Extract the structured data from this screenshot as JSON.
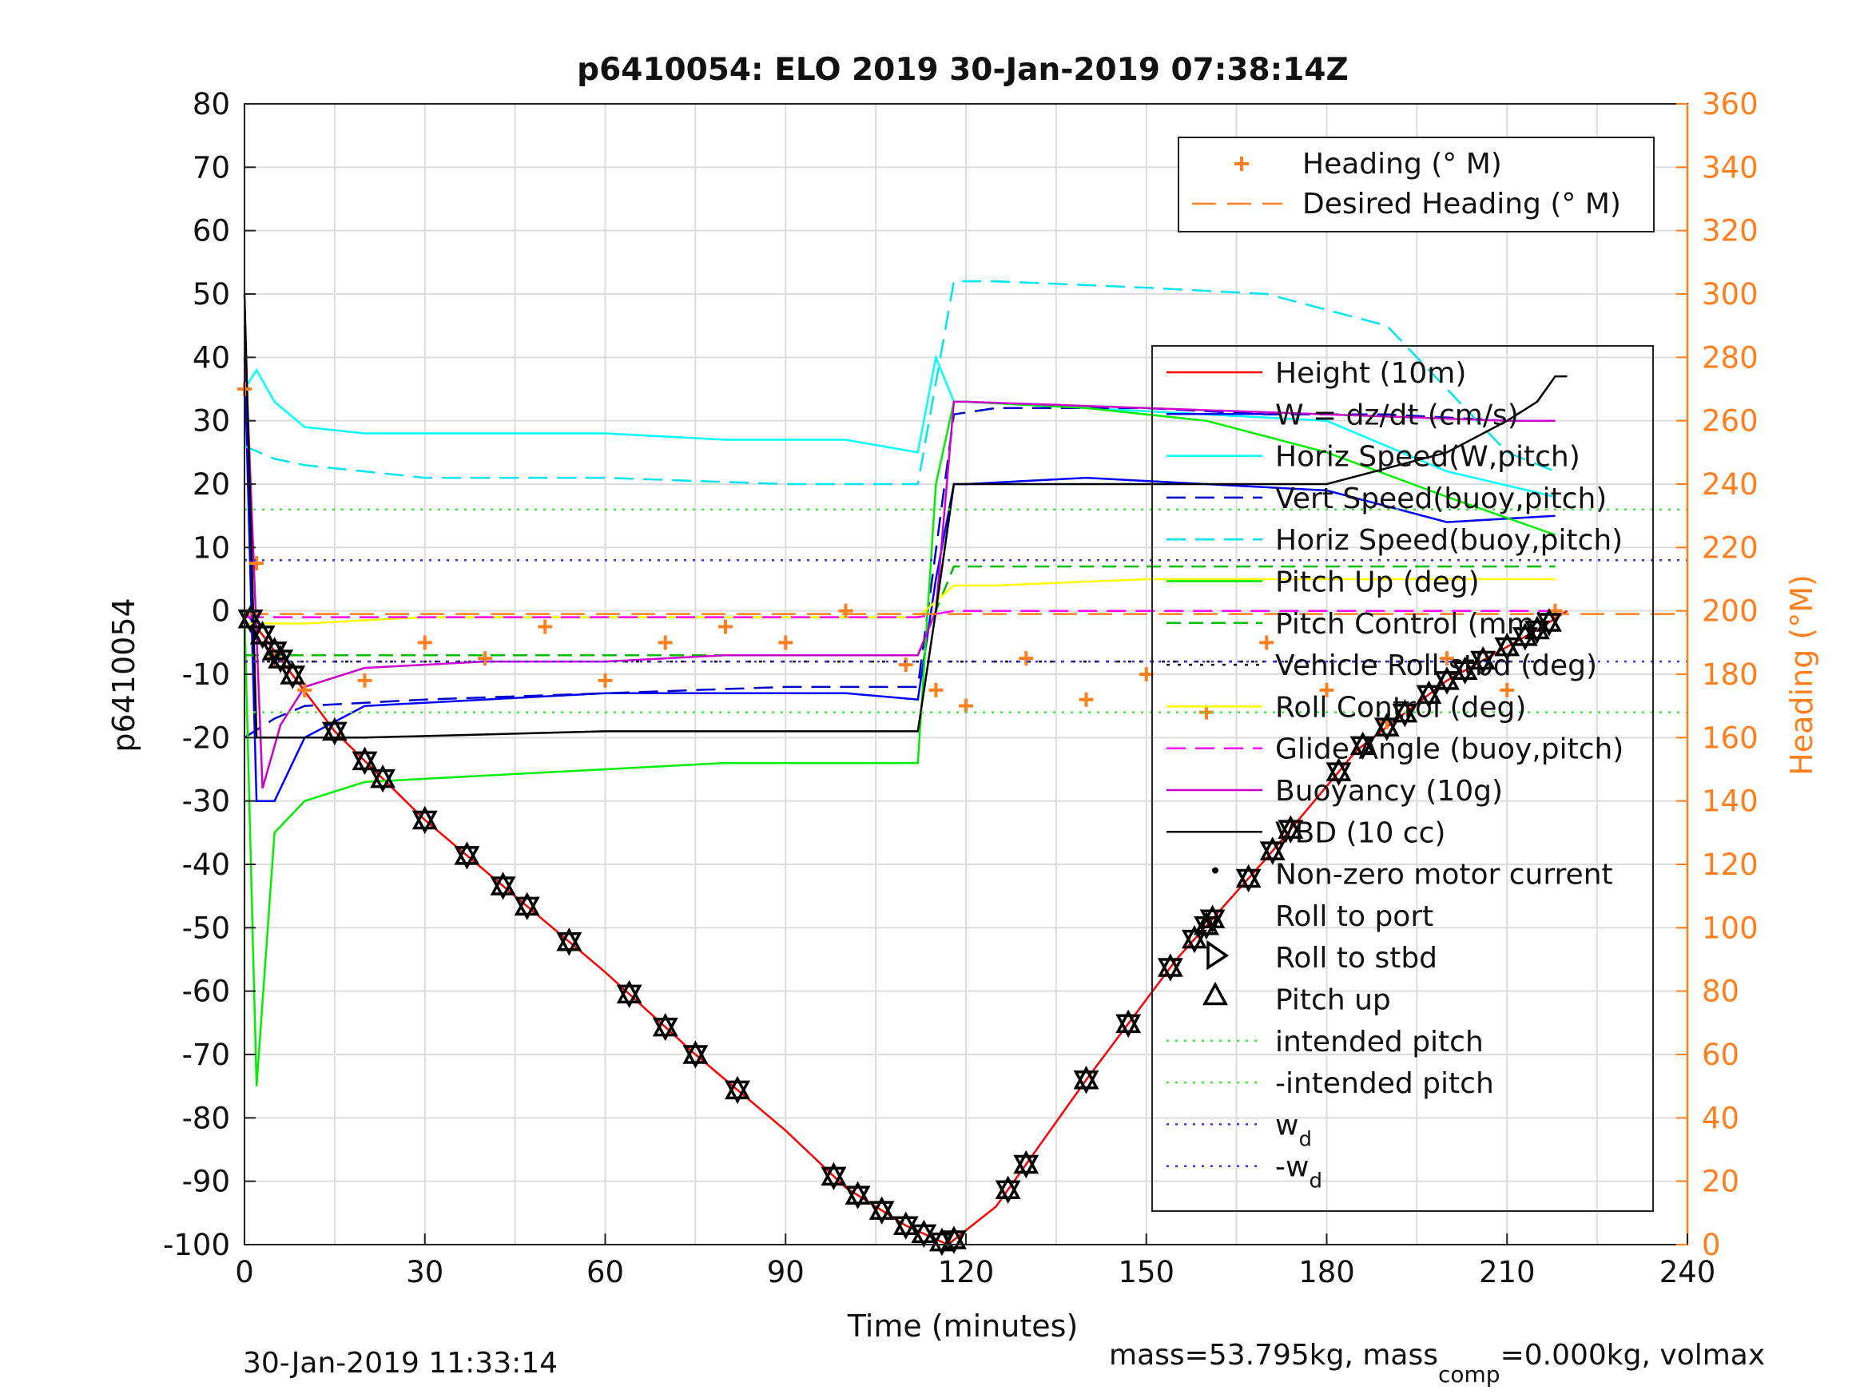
{
  "chart_data": {
    "type": "line",
    "title": "p6410054: ELO 2019 30-Jan-2019 07:38:14Z",
    "xlabel": "Time (minutes)",
    "ylabel": "p6410054",
    "y2label": "Heading (°M)",
    "xlim": [
      0,
      240
    ],
    "ylim": [
      -100,
      80
    ],
    "y2lim": [
      0,
      360
    ],
    "xticks": [
      "0",
      "30",
      "60",
      "90",
      "120",
      "150",
      "180",
      "210",
      "240"
    ],
    "yticks": [
      "80",
      "70",
      "60",
      "50",
      "40",
      "30",
      "20",
      "10",
      "0",
      "-10",
      "-20",
      "-30",
      "-40",
      "-50",
      "-60",
      "-70",
      "-80",
      "-90",
      "-100"
    ],
    "y2ticks": [
      "360",
      "340",
      "320",
      "300",
      "280",
      "260",
      "240",
      "220",
      "200",
      "180",
      "160",
      "140",
      "120",
      "100",
      "80",
      "60",
      "40",
      "20",
      "0"
    ],
    "grid": true,
    "colors": {
      "height": "#ff0000",
      "w": "#0000ff",
      "horiz_w": "#00ffff",
      "vert_buoy": "#0000cc",
      "horiz_buoy": "#00e5ee",
      "pitch": "#00ee00",
      "pitch_ctrl": "#00bb00",
      "roll": "#000000",
      "roll_ctrl": "#ffff00",
      "glide": "#ff00ff",
      "buoyancy": "#cc00cc",
      "vbd": "#000000",
      "heading": "#ff7f1f",
      "intended": "#33ee33",
      "wd": "#3333ff"
    },
    "series": [
      {
        "name": "Height (10m)",
        "x": [
          0,
          15,
          30,
          45,
          60,
          75,
          90,
          100,
          110,
          117,
          125,
          140,
          155,
          170,
          185,
          200,
          215,
          220
        ],
        "y": [
          0,
          -19,
          -33,
          -45,
          -57,
          -70,
          -82,
          -91,
          -97,
          -100,
          -94,
          -74,
          -55,
          -39,
          -22,
          -11,
          -3,
          0
        ]
      },
      {
        "name": "W = dz/dt (cm/s)",
        "x": [
          0,
          2,
          5,
          10,
          20,
          40,
          60,
          80,
          100,
          112,
          115,
          118,
          120,
          140,
          160,
          180,
          200,
          218
        ],
        "y": [
          40,
          -30,
          -30,
          -20,
          -15,
          -14,
          -13,
          -13,
          -13,
          -14,
          5,
          20,
          20,
          21,
          20,
          19,
          14,
          15
        ]
      },
      {
        "name": "Horiz Speed(W,pitch)",
        "x": [
          0,
          2,
          5,
          10,
          20,
          40,
          60,
          80,
          100,
          112,
          115,
          118,
          120,
          140,
          160,
          180,
          200,
          218
        ],
        "y": [
          35,
          38,
          33,
          29,
          28,
          28,
          28,
          27,
          27,
          25,
          40,
          33,
          33,
          32,
          31,
          30,
          22,
          18
        ]
      },
      {
        "name": "Vert Speed(buoy,pitch)",
        "x": [
          0,
          5,
          10,
          30,
          60,
          90,
          112,
          118,
          125,
          150,
          170,
          190,
          210,
          218
        ],
        "y": [
          -20,
          -17,
          -15,
          -14,
          -13,
          -12,
          -12,
          31,
          32,
          32,
          31,
          31,
          30,
          30
        ]
      },
      {
        "name": "Horiz Speed(buoy,pitch)",
        "x": [
          0,
          5,
          10,
          30,
          60,
          90,
          112,
          118,
          125,
          150,
          170,
          190,
          210,
          218
        ],
        "y": [
          26,
          24,
          23,
          21,
          21,
          20,
          20,
          52,
          52,
          51,
          50,
          45,
          25,
          22
        ]
      },
      {
        "name": "Pitch Up (deg)",
        "x": [
          0,
          2,
          5,
          10,
          20,
          40,
          60,
          80,
          100,
          112,
          115,
          118,
          120,
          140,
          160,
          180,
          200,
          218
        ],
        "y": [
          0,
          -75,
          -35,
          -30,
          -27,
          -26,
          -25,
          -24,
          -24,
          -24,
          20,
          33,
          33,
          32,
          30,
          25,
          18,
          12
        ]
      },
      {
        "name": "Pitch Control (mm)",
        "x": [
          0,
          10,
          30,
          60,
          90,
          112,
          118,
          125,
          150,
          180,
          210,
          218
        ],
        "y": [
          -7,
          -7,
          -7,
          -7,
          -7,
          -7,
          7,
          7,
          7,
          7,
          7,
          7
        ]
      },
      {
        "name": "Vehicle Roll stbd (deg)",
        "x": [
          0,
          10,
          30,
          60,
          90,
          112,
          118,
          125,
          150,
          180,
          210,
          218
        ],
        "y": [
          -8,
          -8,
          -8,
          -8,
          -8,
          -8,
          -8,
          -8,
          -8,
          -8,
          -8,
          -8
        ]
      },
      {
        "name": "Roll Control (deg)",
        "x": [
          0,
          10,
          30,
          60,
          90,
          112,
          118,
          125,
          150,
          180,
          210,
          218
        ],
        "y": [
          -2,
          -2,
          -1,
          -1,
          -1,
          -1,
          4,
          4,
          5,
          5,
          5,
          5
        ]
      },
      {
        "name": "Glide Angle (buoy,pitch)",
        "x": [
          0,
          10,
          30,
          60,
          90,
          112,
          118,
          125,
          150,
          180,
          210,
          218
        ],
        "y": [
          -1,
          -1,
          -1,
          -1,
          -1,
          -1,
          0,
          0,
          0,
          0,
          0,
          0
        ]
      },
      {
        "name": "Buoyancy (10g)",
        "x": [
          0,
          3,
          6,
          10,
          20,
          40,
          60,
          80,
          100,
          112,
          115,
          118,
          120,
          150,
          180,
          210,
          218
        ],
        "y": [
          45,
          -28,
          -18,
          -12,
          -9,
          -8,
          -8,
          -7,
          -7,
          -7,
          0,
          33,
          33,
          32,
          31,
          30,
          30
        ]
      },
      {
        "name": "VBD (10 cc)",
        "x": [
          0,
          2,
          5,
          20,
          60,
          100,
          112,
          115,
          118,
          150,
          180,
          200,
          210,
          215,
          218,
          220
        ],
        "y": [
          50,
          -20,
          -20,
          -20,
          -19,
          -19,
          -19,
          0,
          20,
          20,
          20,
          25,
          30,
          33,
          37,
          37
        ]
      },
      {
        "name": "Heading (° M)",
        "axis": "right",
        "x": [
          0,
          2,
          5,
          10,
          20,
          30,
          40,
          50,
          60,
          70,
          80,
          90,
          100,
          110,
          115,
          120,
          130,
          140,
          150,
          160,
          170,
          180,
          190,
          200,
          210,
          218
        ],
        "y": [
          270,
          215,
          185,
          175,
          178,
          190,
          185,
          195,
          178,
          190,
          195,
          190,
          200,
          183,
          175,
          170,
          185,
          172,
          180,
          168,
          190,
          175,
          165,
          185,
          175,
          200
        ]
      },
      {
        "name": "Desired Heading (° M)",
        "axis": "right",
        "x": [
          0,
          240
        ],
        "y": [
          199,
          199
        ]
      },
      {
        "name": "intended pitch",
        "x": [
          0,
          240
        ],
        "y": [
          16,
          16
        ]
      },
      {
        "name": "-intended pitch",
        "x": [
          0,
          240
        ],
        "y": [
          -16,
          -16
        ]
      },
      {
        "name": "w_d",
        "x": [
          0,
          240
        ],
        "y": [
          8,
          8
        ]
      },
      {
        "name": "-w_d",
        "x": [
          0,
          240
        ],
        "y": [
          -8,
          -8
        ]
      }
    ],
    "markers": {
      "pitch_up_times": [
        1,
        3,
        5,
        6,
        8,
        15,
        20,
        23,
        30,
        37,
        43,
        47,
        54,
        64,
        70,
        75,
        82,
        98,
        102,
        106,
        110,
        113,
        116,
        118,
        127,
        130,
        140,
        147,
        154,
        158,
        160,
        161,
        167,
        171,
        174,
        182,
        186,
        190,
        193,
        197,
        200,
        203,
        206,
        210,
        213,
        215,
        217
      ],
      "legend_items": [
        "Non-zero motor current",
        "Roll to port",
        "Roll to stbd",
        "Pitch up"
      ]
    },
    "legend_position": "right",
    "heading_legend": [
      "Heading (° M)",
      "Desired Heading (° M)"
    ],
    "main_legend": [
      "Height (10m)",
      "W = dz/dt (cm/s)",
      "Horiz Speed(W,pitch)",
      "Vert Speed(buoy,pitch)",
      "Horiz Speed(buoy,pitch)",
      "Pitch Up (deg)",
      "Pitch Control (mm)",
      "Vehicle Roll stbd (deg)",
      "Roll Control (deg)",
      "Glide Angle (buoy,pitch)",
      "Buoyancy (10g)",
      "VBD (10 cc)",
      "Non-zero motor current",
      "Roll to port",
      "Roll to stbd",
      "Pitch up",
      "intended pitch",
      "-intended pitch",
      "w",
      "-w"
    ],
    "footer_left": "30-Jan-2019 11:33:14",
    "footer_right_a": "mass=53.795kg, mass",
    "footer_right_sub": "comp",
    "footer_right_b": "=0.000kg, volmax"
  }
}
